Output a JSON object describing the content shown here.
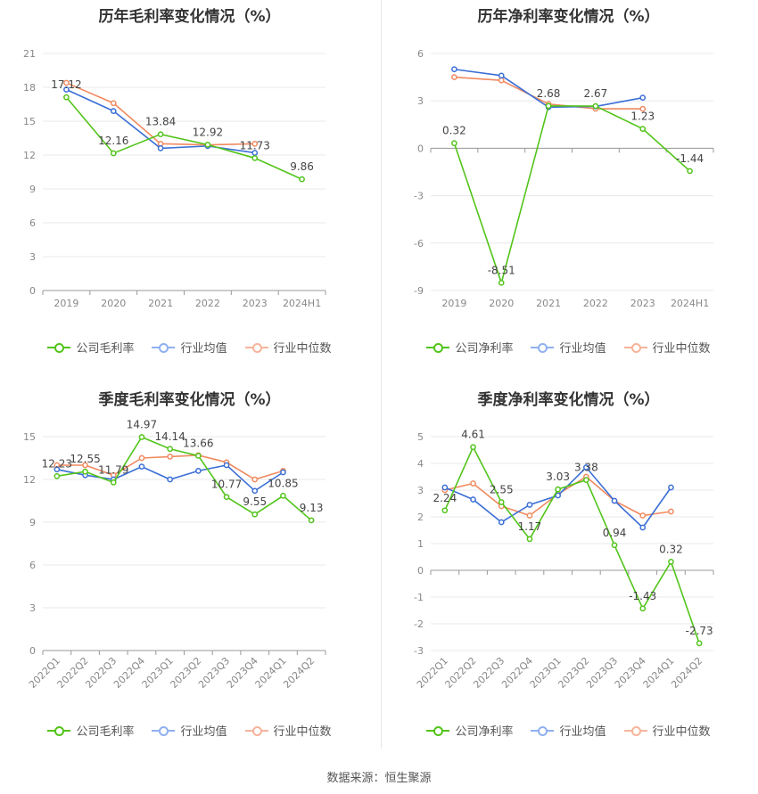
{
  "source_label": "数据来源：恒生聚源",
  "colors": {
    "company": "#52c41a",
    "avg": "#3b6fd6",
    "median": "#f08a60"
  },
  "legend_labels": {
    "gross": [
      "公司毛利率",
      "行业均值",
      "行业中位数"
    ],
    "net": [
      "公司净利率",
      "行业均值",
      "行业中位数"
    ]
  },
  "chart_data": [
    {
      "type": "line",
      "title": "历年毛利率变化情况（%）",
      "categories": [
        "2019",
        "2020",
        "2021",
        "2022",
        "2023",
        "2024H1"
      ],
      "ylim": [
        0,
        21
      ],
      "yticks": [
        0,
        3,
        6,
        9,
        12,
        15,
        18,
        21
      ],
      "rotate_x": false,
      "series": [
        {
          "name": "公司毛利率",
          "key": "company",
          "values": [
            17.12,
            12.16,
            13.84,
            12.92,
            11.73,
            9.86
          ],
          "labels": [
            "17.12",
            "12.16",
            "13.84",
            "12.92",
            "11.73",
            "9.86"
          ]
        },
        {
          "name": "行业均值",
          "key": "avg",
          "values": [
            17.8,
            15.9,
            12.6,
            12.8,
            12.2,
            null
          ]
        },
        {
          "name": "行业中位数",
          "key": "median",
          "values": [
            18.4,
            16.6,
            13.0,
            12.9,
            13.0,
            null
          ]
        }
      ]
    },
    {
      "type": "line",
      "title": "历年净利率变化情况（%）",
      "categories": [
        "2019",
        "2020",
        "2021",
        "2022",
        "2023",
        "2024H1"
      ],
      "ylim": [
        -9,
        6
      ],
      "yticks": [
        -9,
        -6,
        -3,
        0,
        3,
        6
      ],
      "rotate_x": false,
      "series": [
        {
          "name": "公司净利率",
          "key": "company",
          "values": [
            0.32,
            -8.51,
            2.68,
            2.67,
            1.23,
            -1.44
          ],
          "labels": [
            "0.32",
            "-8.51",
            "2.68",
            "2.67",
            "1.23",
            "-1.44"
          ]
        },
        {
          "name": "行业均值",
          "key": "avg",
          "values": [
            5.0,
            4.6,
            2.6,
            2.65,
            3.2,
            null
          ]
        },
        {
          "name": "行业中位数",
          "key": "median",
          "values": [
            4.5,
            4.3,
            2.8,
            2.5,
            2.5,
            null
          ]
        }
      ]
    },
    {
      "type": "line",
      "title": "季度毛利率变化情况（%）",
      "categories": [
        "2022Q1",
        "2022Q2",
        "2022Q3",
        "2022Q4",
        "2023Q1",
        "2023Q2",
        "2023Q3",
        "2023Q4",
        "2024Q1",
        "2024Q2"
      ],
      "ylim": [
        0,
        15
      ],
      "yticks": [
        0,
        3,
        6,
        9,
        12,
        15
      ],
      "rotate_x": true,
      "series": [
        {
          "name": "公司毛利率",
          "key": "company",
          "values": [
            12.23,
            12.55,
            11.79,
            14.97,
            14.14,
            13.66,
            10.77,
            9.55,
            10.85,
            9.13
          ],
          "labels": [
            "12.23",
            "12.55",
            "11.79",
            "14.97",
            "14.14",
            "13.66",
            "10.77",
            "9.55",
            "10.85",
            "9.13"
          ]
        },
        {
          "name": "行业均值",
          "key": "avg",
          "values": [
            12.7,
            12.3,
            12.0,
            12.9,
            12.0,
            12.6,
            13.0,
            11.2,
            12.5,
            null
          ]
        },
        {
          "name": "行业中位数",
          "key": "median",
          "values": [
            13.0,
            13.0,
            12.3,
            13.5,
            13.6,
            13.7,
            13.2,
            12.0,
            12.6,
            null
          ]
        }
      ]
    },
    {
      "type": "line",
      "title": "季度净利率变化情况（%）",
      "categories": [
        "2022Q1",
        "2022Q2",
        "2022Q3",
        "2022Q4",
        "2023Q1",
        "2023Q2",
        "2023Q3",
        "2023Q4",
        "2024Q1",
        "2024Q2"
      ],
      "ylim": [
        -3,
        5
      ],
      "yticks": [
        -3,
        -2,
        -1,
        0,
        1,
        2,
        3,
        4,
        5
      ],
      "rotate_x": true,
      "series": [
        {
          "name": "公司净利率",
          "key": "company",
          "values": [
            2.24,
            4.61,
            2.55,
            1.17,
            3.03,
            3.38,
            0.94,
            -1.43,
            0.32,
            -2.73
          ],
          "labels": [
            "2.24",
            "4.61",
            "2.55",
            "1.17",
            "3.03",
            "3.38",
            "0.94",
            "-1.43",
            "0.32",
            "-2.73"
          ]
        },
        {
          "name": "行业均值",
          "key": "avg",
          "values": [
            3.1,
            2.65,
            1.8,
            2.45,
            2.8,
            3.85,
            2.6,
            1.6,
            3.1,
            null
          ]
        },
        {
          "name": "行业中位数",
          "key": "median",
          "values": [
            3.0,
            3.25,
            2.4,
            2.05,
            2.85,
            3.5,
            2.6,
            2.05,
            2.2,
            null
          ]
        }
      ]
    }
  ]
}
